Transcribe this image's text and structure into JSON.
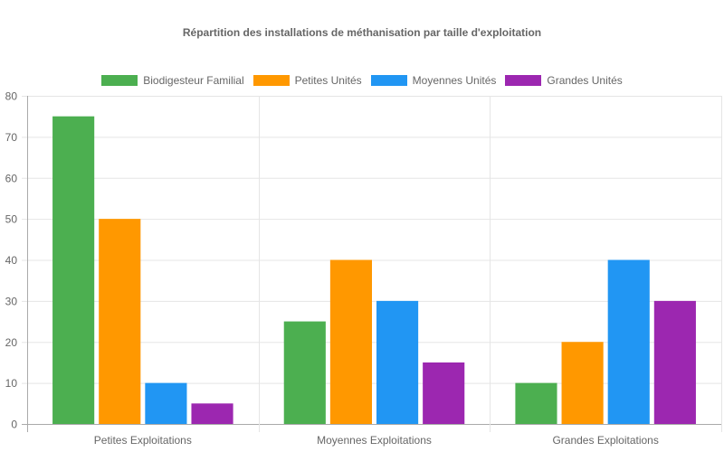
{
  "chart_data": {
    "type": "bar",
    "title": "Répartition des installations de méthanisation par taille d'exploitation",
    "categories": [
      "Petites Exploitations",
      "Moyennes Exploitations",
      "Grandes Exploitations"
    ],
    "series": [
      {
        "name": "Biodigesteur Familial",
        "color": "#4caf50",
        "values": [
          75,
          25,
          10
        ]
      },
      {
        "name": "Petites Unités",
        "color": "#ff9800",
        "values": [
          50,
          40,
          20
        ]
      },
      {
        "name": "Moyennes Unités",
        "color": "#2196f3",
        "values": [
          10,
          30,
          40
        ]
      },
      {
        "name": "Grandes Unités",
        "color": "#9c27b0",
        "values": [
          5,
          15,
          30
        ]
      }
    ],
    "xlabel": "",
    "ylabel": "",
    "ylim": [
      0,
      80
    ],
    "yticks": [
      0,
      10,
      20,
      30,
      40,
      50,
      60,
      70,
      80
    ],
    "grid": true,
    "legend_position": "top"
  }
}
